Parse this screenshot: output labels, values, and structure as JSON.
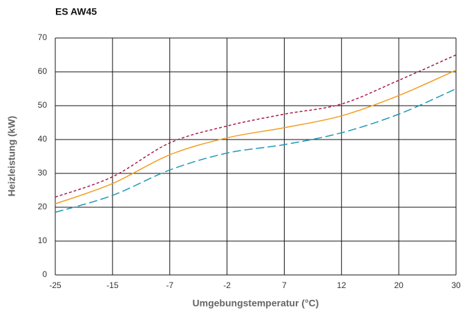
{
  "chart_data": {
    "type": "line",
    "title": "ES AW45",
    "xlabel": "Umgebungstemperatur (°C)",
    "ylabel": "Heizleistung (kW)",
    "categories": [
      "-25",
      "-15",
      "-7",
      "-2",
      "7",
      "12",
      "20",
      "30"
    ],
    "series": [
      {
        "color": "#a8174a",
        "dash": "short",
        "values": [
          23,
          29,
          39,
          44,
          47.5,
          50.5,
          57.5,
          65
        ]
      },
      {
        "color": "#f39c1f",
        "dash": "solid",
        "values": [
          21,
          27,
          35.5,
          40.5,
          43.5,
          47,
          53,
          60.5
        ]
      },
      {
        "color": "#1c97b5",
        "dash": "long",
        "values": [
          18.5,
          23.5,
          31,
          36,
          38.5,
          42,
          47.5,
          55
        ]
      }
    ],
    "ylim": [
      0,
      70
    ],
    "yticks": [
      0,
      10,
      20,
      30,
      40,
      50,
      60,
      70
    ],
    "grid": true
  }
}
